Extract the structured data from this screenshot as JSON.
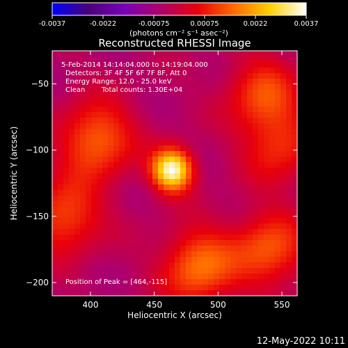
{
  "colorbar": {
    "ticks": [
      "-0.0037",
      "-0.0022",
      "-0.00075",
      "0.00075",
      "0.0022",
      "0.0037"
    ],
    "units": "(photons cm⁻² s⁻¹ asec⁻²)",
    "range": [
      -0.0037,
      0.0037
    ],
    "stops": [
      "#0000ff",
      "#4b007a",
      "#7a00b8",
      "#b0006a",
      "#e8000a",
      "#ff6a00",
      "#ffd000",
      "#ffffff"
    ]
  },
  "plot": {
    "title": "Reconstructed RHESSI Image",
    "time_range": "5-Feb-2014 14:14:04.000 to 14:19:04.000",
    "detectors": "Detectors: 3F 4F 5F 6F 7F 8F, Att 0",
    "energy_range": "Energy Range: 12.0 - 25.0 keV",
    "clean_label": "Clean",
    "total_counts": "Total counts: 1.30E+04",
    "peak_position": "Position of Peak = [464,-115]",
    "xlabel": "Heliocentric X (arcsec)",
    "ylabel": "Heliocentric Y (arcsec)"
  },
  "footer": {
    "timestamp": "12-May-2022 10:11"
  },
  "chart_data": {
    "type": "heatmap",
    "title": "Reconstructed RHESSI Image",
    "xlabel": "Heliocentric X (arcsec)",
    "ylabel": "Heliocentric Y (arcsec)",
    "xlim": [
      370,
      562
    ],
    "ylim": [
      -210,
      -25
    ],
    "xticks": [
      400,
      450,
      500,
      550
    ],
    "yticks": [
      -50,
      -100,
      -150,
      -200
    ],
    "colorbar_range": [
      -0.0037,
      0.0037
    ],
    "peak": {
      "x": 464,
      "y": -115,
      "value": 0.0037
    },
    "secondary_sources": [
      {
        "x": 405,
        "y": -92,
        "value": 0.0016
      },
      {
        "x": 380,
        "y": -150,
        "value": 0.0013
      },
      {
        "x": 485,
        "y": -188,
        "value": 0.0017
      },
      {
        "x": 540,
        "y": -175,
        "value": 0.0014
      },
      {
        "x": 535,
        "y": -58,
        "value": 0.0012
      },
      {
        "x": 548,
        "y": -98,
        "value": 0.0009
      }
    ]
  }
}
